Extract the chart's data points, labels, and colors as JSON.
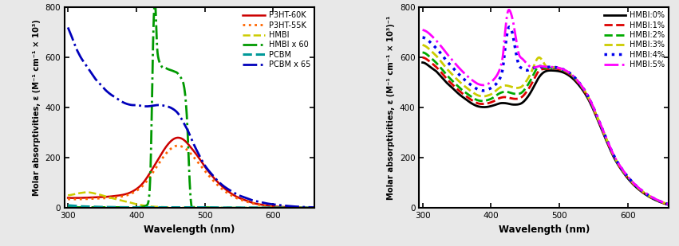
{
  "left_plot": {
    "ylabel": "Molar absorptivities, ε (M⁻¹ cm⁻¹ × 10³)",
    "xlabel": "Wavelength (nm)",
    "xlim": [
      295,
      660
    ],
    "ylim": [
      0,
      800
    ],
    "yticks": [
      0,
      200,
      400,
      600,
      800
    ],
    "xticks": [
      300,
      400,
      500,
      600
    ],
    "series": [
      {
        "label": "P3HT-60K",
        "color": "#cc0000",
        "linestyle": "solid",
        "linewidth": 1.8,
        "points_x": [
          300,
          320,
          340,
          350,
          360,
          370,
          380,
          390,
          400,
          410,
          420,
          430,
          440,
          450,
          460,
          465,
          470,
          480,
          490,
          500,
          510,
          520,
          530,
          540,
          550,
          560,
          570,
          580,
          600,
          620,
          640,
          660
        ],
        "points_y": [
          40,
          40,
          42,
          43,
          45,
          48,
          52,
          60,
          75,
          100,
          140,
          185,
          230,
          265,
          280,
          278,
          270,
          240,
          205,
          165,
          130,
          100,
          75,
          55,
          40,
          30,
          20,
          14,
          6,
          3,
          1,
          0.5
        ]
      },
      {
        "label": "P3HT-55K",
        "color": "#ff6600",
        "linestyle": "dotted",
        "linewidth": 2.0,
        "points_x": [
          300,
          320,
          340,
          350,
          360,
          370,
          380,
          390,
          400,
          410,
          420,
          430,
          440,
          450,
          460,
          465,
          470,
          480,
          490,
          500,
          510,
          520,
          530,
          540,
          550,
          560,
          570,
          580,
          600,
          620,
          640,
          660
        ],
        "points_y": [
          35,
          35,
          37,
          38,
          40,
          42,
          46,
          54,
          68,
          90,
          125,
          165,
          205,
          235,
          248,
          246,
          240,
          215,
          182,
          148,
          116,
          88,
          65,
          48,
          35,
          26,
          18,
          12,
          5,
          2,
          1,
          0.3
        ]
      },
      {
        "label": "HMBI",
        "color": "#cccc00",
        "linestyle": "dashed",
        "linewidth": 1.8,
        "points_x": [
          300,
          305,
          310,
          315,
          320,
          325,
          330,
          335,
          340,
          350,
          360,
          370,
          380,
          390,
          395,
          400,
          405,
          410,
          415,
          420,
          430,
          440,
          450,
          460,
          480,
          500,
          540,
          580,
          640,
          660
        ],
        "points_y": [
          50,
          52,
          55,
          58,
          60,
          62,
          62,
          60,
          57,
          50,
          42,
          35,
          28,
          22,
          18,
          15,
          12,
          10,
          8,
          6,
          4,
          3,
          2,
          1,
          0.3,
          0.1,
          0,
          0,
          0,
          0
        ]
      },
      {
        "label": "HMBI x 60",
        "color": "#009900",
        "linestyle": "dashdot",
        "linewidth": 2.0,
        "points_x": [
          300,
          310,
          320,
          330,
          340,
          350,
          360,
          370,
          380,
          390,
          400,
          405,
          410,
          415,
          418,
          420,
          422,
          424,
          426,
          428,
          430,
          432,
          434,
          436,
          438,
          440,
          445,
          450,
          455,
          460,
          465,
          470,
          475,
          478,
          480,
          485,
          490,
          500,
          510,
          520,
          540,
          560,
          580,
          600,
          640,
          660
        ],
        "points_y": [
          2,
          2,
          2,
          2,
          2,
          2,
          2,
          2,
          2,
          2,
          2,
          3,
          5,
          10,
          30,
          100,
          300,
          600,
          790,
          800,
          660,
          600,
          580,
          570,
          560,
          560,
          555,
          550,
          545,
          538,
          520,
          480,
          300,
          100,
          20,
          5,
          2,
          1,
          0.5,
          0.2,
          0,
          0,
          0,
          0,
          0,
          0
        ]
      },
      {
        "label": "PCBM",
        "color": "#009999",
        "linestyle": "dashed",
        "linewidth": 2.2,
        "points_x": [
          300,
          310,
          320,
          330,
          340,
          360,
          380,
          400,
          420,
          440,
          460,
          480,
          500,
          520,
          540,
          560,
          580,
          600,
          640,
          660
        ],
        "points_y": [
          10,
          8,
          6,
          5,
          4,
          3,
          2,
          2,
          2,
          2,
          2,
          2,
          2,
          1,
          1,
          1,
          0.5,
          0.5,
          0,
          0
        ]
      },
      {
        "label": "PCBM x 65",
        "color": "#0000bb",
        "linestyle": "dashdot",
        "linewidth": 2.0,
        "points_x": [
          300,
          303,
          306,
          310,
          315,
          320,
          325,
          330,
          335,
          340,
          345,
          350,
          355,
          360,
          365,
          370,
          375,
          380,
          385,
          390,
          395,
          400,
          405,
          410,
          415,
          420,
          425,
          430,
          435,
          440,
          445,
          450,
          455,
          460,
          465,
          470,
          475,
          480,
          490,
          500,
          510,
          520,
          530,
          540,
          550,
          560,
          570,
          580,
          590,
          600,
          620,
          640,
          660
        ],
        "points_y": [
          720,
          700,
          680,
          650,
          620,
          595,
          575,
          555,
          535,
          515,
          500,
          485,
          470,
          458,
          448,
          440,
          430,
          422,
          416,
          412,
          410,
          410,
          408,
          406,
          405,
          406,
          408,
          410,
          410,
          408,
          405,
          400,
          392,
          380,
          360,
          335,
          310,
          278,
          220,
          170,
          135,
          105,
          82,
          65,
          50,
          40,
          30,
          24,
          18,
          14,
          8,
          4,
          2
        ]
      }
    ]
  },
  "right_plot": {
    "ylabel": "Molar absorptivities, ε (M⁻¹ cm⁻¹ × 10³)⁻¹",
    "xlabel": "Wavelength (nm)",
    "xlim": [
      295,
      660
    ],
    "ylim": [
      0,
      800
    ],
    "yticks": [
      0,
      200,
      400,
      600,
      800
    ],
    "xticks": [
      300,
      400,
      500,
      600
    ],
    "series": [
      {
        "label": "HMBI:0%",
        "color": "#000000",
        "linestyle": "solid",
        "linewidth": 2.0,
        "points_x": [
          300,
          305,
          310,
          315,
          320,
          325,
          330,
          335,
          340,
          345,
          350,
          355,
          360,
          365,
          370,
          375,
          380,
          385,
          390,
          395,
          400,
          405,
          410,
          415,
          420,
          425,
          430,
          435,
          440,
          445,
          450,
          460,
          470,
          480,
          490,
          500,
          510,
          520,
          530,
          540,
          550,
          560,
          570,
          580,
          590,
          600,
          620,
          640,
          660
        ],
        "points_y": [
          580,
          575,
          565,
          555,
          545,
          530,
          515,
          500,
          488,
          475,
          462,
          450,
          440,
          430,
          420,
          412,
          406,
          403,
          402,
          403,
          406,
          410,
          415,
          418,
          418,
          416,
          413,
          412,
          413,
          418,
          430,
          470,
          520,
          545,
          548,
          545,
          535,
          515,
          485,
          445,
          390,
          325,
          260,
          200,
          155,
          118,
          65,
          32,
          12
        ]
      },
      {
        "label": "HMBI:1%",
        "color": "#dd0000",
        "linestyle": "dashed",
        "linewidth": 2.0,
        "points_x": [
          300,
          305,
          310,
          315,
          320,
          325,
          330,
          335,
          340,
          345,
          350,
          355,
          360,
          365,
          370,
          375,
          380,
          385,
          390,
          395,
          400,
          405,
          410,
          415,
          420,
          425,
          430,
          435,
          440,
          445,
          450,
          460,
          470,
          480,
          490,
          500,
          510,
          520,
          530,
          540,
          550,
          560,
          570,
          580,
          590,
          600,
          620,
          640,
          660
        ],
        "points_y": [
          600,
          595,
          585,
          574,
          562,
          548,
          532,
          516,
          502,
          489,
          476,
          464,
          453,
          443,
          433,
          425,
          418,
          415,
          415,
          417,
          421,
          427,
          435,
          440,
          442,
          440,
          437,
          435,
          436,
          442,
          456,
          498,
          546,
          554,
          557,
          553,
          542,
          522,
          491,
          450,
          394,
          328,
          263,
          202,
          157,
          120,
          67,
          33,
          13
        ]
      },
      {
        "label": "HMBI:2%",
        "color": "#00aa00",
        "linestyle": "dashed",
        "linewidth": 2.0,
        "points_x": [
          300,
          305,
          310,
          315,
          320,
          325,
          330,
          335,
          340,
          345,
          350,
          355,
          360,
          365,
          370,
          375,
          380,
          385,
          390,
          395,
          400,
          405,
          410,
          415,
          420,
          425,
          430,
          435,
          440,
          445,
          450,
          460,
          470,
          480,
          490,
          500,
          510,
          520,
          530,
          540,
          550,
          560,
          570,
          580,
          590,
          600,
          620,
          640,
          660
        ],
        "points_y": [
          620,
          615,
          604,
          592,
          579,
          564,
          548,
          531,
          517,
          503,
          490,
          477,
          466,
          456,
          446,
          437,
          430,
          427,
          427,
          430,
          435,
          443,
          453,
          460,
          463,
          462,
          458,
          455,
          455,
          460,
          475,
          520,
          565,
          556,
          559,
          555,
          544,
          524,
          493,
          452,
          396,
          330,
          265,
          204,
          158,
          122,
          68,
          34,
          13
        ]
      },
      {
        "label": "HMBI:3%",
        "color": "#cccc00",
        "linestyle": "dashed",
        "linewidth": 2.0,
        "points_x": [
          300,
          305,
          310,
          315,
          320,
          325,
          330,
          335,
          340,
          345,
          350,
          355,
          360,
          365,
          370,
          375,
          380,
          385,
          390,
          395,
          400,
          405,
          410,
          415,
          420,
          425,
          430,
          435,
          440,
          445,
          450,
          460,
          470,
          480,
          490,
          500,
          510,
          520,
          530,
          540,
          550,
          560,
          570,
          580,
          590,
          600,
          620,
          640,
          660
        ],
        "points_y": [
          650,
          644,
          633,
          620,
          607,
          591,
          574,
          557,
          542,
          528,
          514,
          501,
          489,
          478,
          467,
          458,
          450,
          446,
          445,
          448,
          453,
          462,
          474,
          483,
          488,
          487,
          483,
          479,
          479,
          484,
          499,
          548,
          600,
          567,
          561,
          557,
          546,
          526,
          495,
          454,
          398,
          332,
          267,
          206,
          160,
          123,
          69,
          35,
          14
        ]
      },
      {
        "label": "HMBI:4%",
        "color": "#0000ee",
        "linestyle": "dotted",
        "linewidth": 2.5,
        "points_x": [
          300,
          305,
          310,
          315,
          320,
          325,
          330,
          335,
          340,
          345,
          350,
          355,
          360,
          365,
          370,
          375,
          380,
          385,
          390,
          395,
          400,
          405,
          410,
          415,
          418,
          420,
          422,
          424,
          426,
          428,
          430,
          432,
          434,
          436,
          438,
          440,
          445,
          450,
          460,
          470,
          480,
          490,
          500,
          510,
          520,
          530,
          540,
          550,
          560,
          570,
          580,
          590,
          600,
          620,
          640,
          660
        ],
        "points_y": [
          680,
          675,
          664,
          651,
          638,
          622,
          605,
          587,
          572,
          557,
          542,
          528,
          515,
          503,
          492,
          482,
          474,
          469,
          468,
          472,
          478,
          488,
          502,
          530,
          570,
          620,
          665,
          700,
          720,
          720,
          710,
          690,
          660,
          628,
          600,
          576,
          558,
          550,
          556,
          562,
          562,
          562,
          558,
          547,
          527,
          496,
          455,
          399,
          333,
          268,
          207,
          161,
          124,
          70,
          35,
          14
        ]
      },
      {
        "label": "HMBI:5%",
        "color": "#ff00ff",
        "linestyle": "dashdot",
        "linewidth": 2.0,
        "points_x": [
          300,
          305,
          310,
          315,
          320,
          325,
          330,
          335,
          340,
          345,
          350,
          355,
          360,
          365,
          370,
          375,
          380,
          385,
          390,
          395,
          400,
          405,
          410,
          415,
          418,
          420,
          422,
          424,
          426,
          428,
          430,
          432,
          434,
          436,
          438,
          440,
          445,
          450,
          460,
          470,
          480,
          490,
          500,
          510,
          520,
          530,
          540,
          550,
          560,
          570,
          580,
          590,
          600,
          620,
          640,
          660
        ],
        "points_y": [
          710,
          705,
          695,
          682,
          668,
          652,
          635,
          617,
          601,
          585,
          569,
          554,
          540,
          527,
          515,
          505,
          496,
          491,
          490,
          494,
          502,
          515,
          535,
          572,
          620,
          680,
          735,
          775,
          790,
          785,
          770,
          748,
          718,
          685,
          652,
          622,
          597,
          583,
          560,
          565,
          563,
          562,
          558,
          547,
          527,
          496,
          456,
          400,
          334,
          269,
          208,
          162,
          125,
          71,
          36,
          14
        ]
      }
    ]
  },
  "fig_bg": "#e8e8e8",
  "plot_bg": "#ffffff"
}
